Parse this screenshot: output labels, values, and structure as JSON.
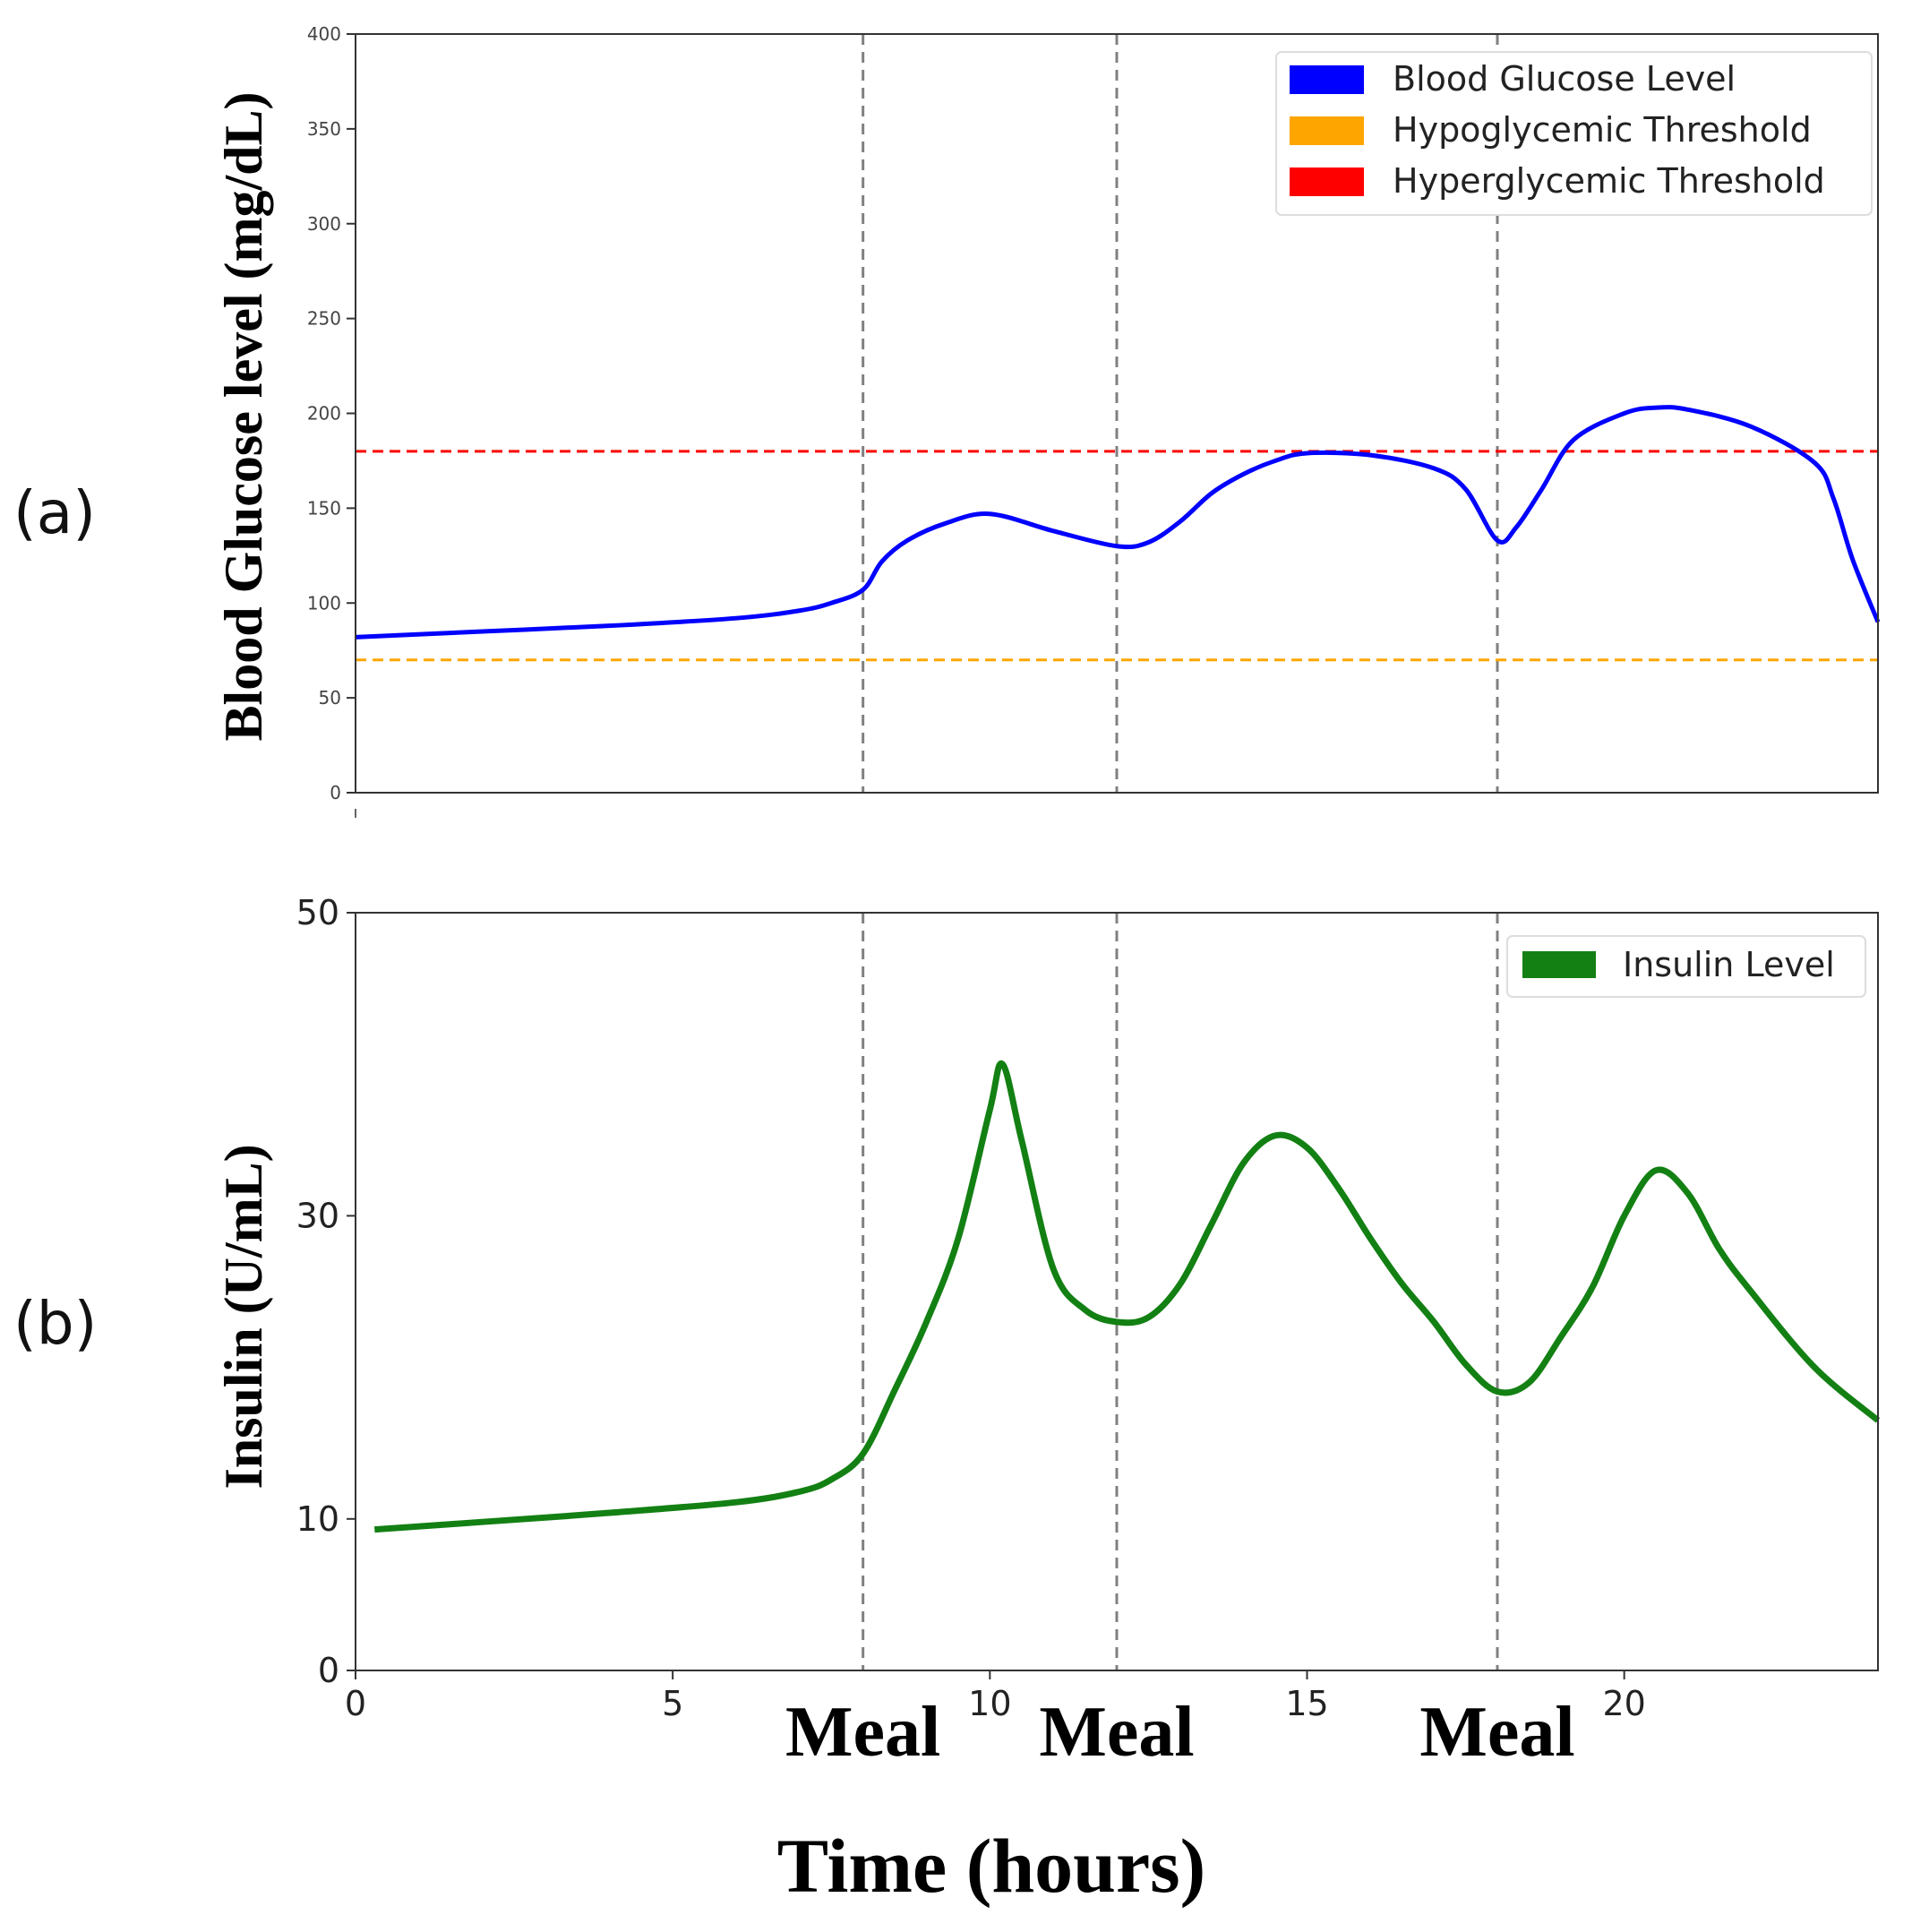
{
  "panels": {
    "a_label": "(a)",
    "b_label": "(b)"
  },
  "shared_x": {
    "title": "Time (hours)",
    "ticks": [
      0,
      5,
      10,
      15,
      20
    ],
    "tick_labels": [
      "0",
      "5",
      "10",
      "15",
      "20"
    ],
    "xlim": [
      0,
      24
    ],
    "meal_label": "Meal",
    "meal_times": [
      8,
      12,
      18
    ]
  },
  "colors": {
    "glucose": "#0000ff",
    "hypo": "#ffa500",
    "hyper": "#ff0000",
    "insulin": "#138013",
    "meal_line": "#808080"
  },
  "chart_data": [
    {
      "type": "line",
      "panel": "a",
      "ylabel": "Blood Glucose level (mg/dL)",
      "ylim": [
        0,
        400
      ],
      "yticks": [
        0,
        50,
        100,
        150,
        200,
        250,
        300,
        350,
        400
      ],
      "legend": [
        "Blood Glucose Level",
        "Hypoglycemic Threshold",
        "Hyperglycemic Threshold"
      ],
      "legend_position": "top-right",
      "thresholds": {
        "hypo": 70,
        "hyper": 180
      },
      "series": [
        {
          "name": "Blood Glucose Level",
          "x": [
            0,
            2,
            4,
            6,
            7,
            7.5,
            8,
            8.3,
            8.7,
            9.3,
            10,
            11,
            12,
            12.5,
            13,
            13.5,
            14,
            14.5,
            15,
            16,
            17,
            17.5,
            18,
            18.3,
            18.7,
            19.2,
            20,
            20.5,
            21,
            22,
            23,
            23.3,
            23.6,
            24
          ],
          "y": [
            82,
            85,
            88,
            92,
            96,
            100,
            107,
            122,
            133,
            142,
            147,
            138,
            130,
            132,
            143,
            158,
            168,
            175,
            179,
            178,
            171,
            160,
            133,
            140,
            160,
            186,
            200,
            203,
            202,
            193,
            174,
            155,
            123,
            90
          ]
        }
      ]
    },
    {
      "type": "line",
      "panel": "b",
      "ylabel": "Insulin (U/mL)",
      "ylim": [
        0,
        50
      ],
      "yticks": [
        0,
        10,
        30,
        50
      ],
      "legend": [
        "Insulin Level"
      ],
      "legend_position": "top-right",
      "series": [
        {
          "name": "Insulin Level",
          "x": [
            0.3,
            2,
            4,
            6,
            7,
            7.5,
            8,
            8.5,
            9,
            9.5,
            10,
            10.2,
            10.5,
            11,
            11.5,
            12,
            12.5,
            13,
            13.5,
            14,
            14.5,
            15,
            15.5,
            16,
            16.5,
            17,
            17.5,
            18,
            18.5,
            19,
            19.5,
            20,
            20.5,
            21,
            21.5,
            22,
            23,
            24
          ],
          "y": [
            9.3,
            9.8,
            10.4,
            11.1,
            11.8,
            12.6,
            14.3,
            18.5,
            23.0,
            28.5,
            37.0,
            40.0,
            35.0,
            26.5,
            23.8,
            23.0,
            23.3,
            25.5,
            29.5,
            33.5,
            35.3,
            34.5,
            31.8,
            28.5,
            25.5,
            23.0,
            20.2,
            18.4,
            19.0,
            22.0,
            25.3,
            30.0,
            33.0,
            31.5,
            27.8,
            25.0,
            20.0,
            16.5
          ]
        }
      ]
    }
  ]
}
